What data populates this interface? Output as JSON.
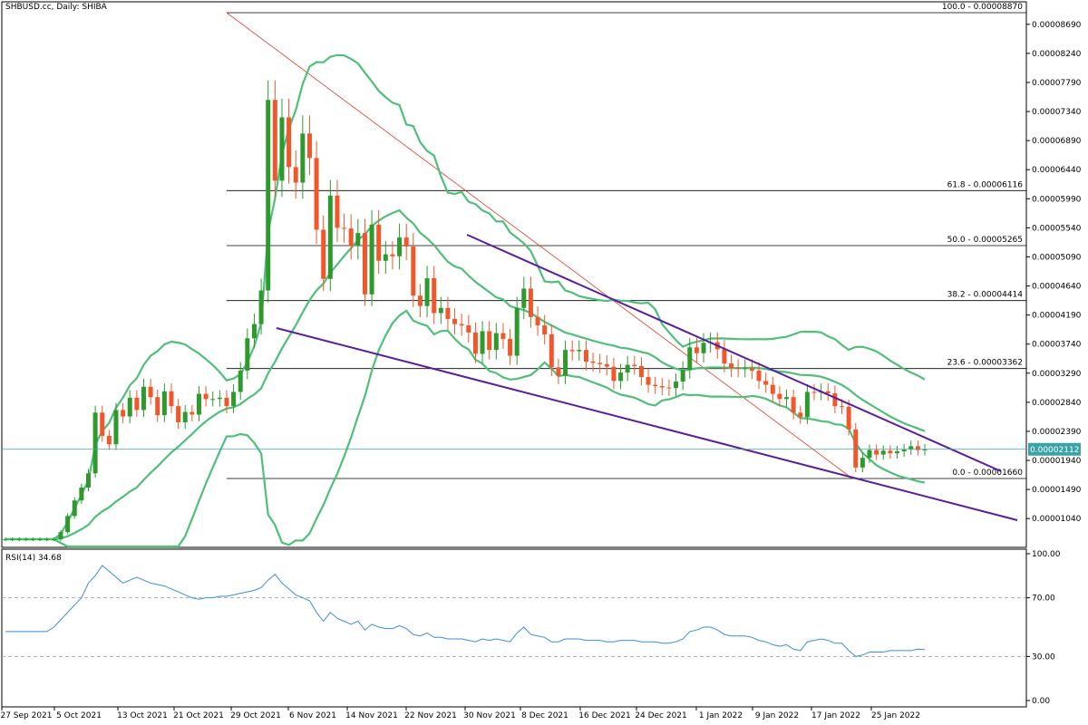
{
  "window": {
    "title": "SHBUSD.cc, Daily:  SHIBA",
    "rsi_label": "RSI(14) 34.68",
    "current_price": "0.00002112"
  },
  "colors": {
    "bull": "#2e9a2e",
    "bear": "#f0582b",
    "band": "#4fbf7a",
    "channel": "#5a1e9c",
    "fib_diag": "#e03a2a",
    "rsi_line": "#3a8ee0",
    "price_line": "#3aa3a8"
  },
  "chart_data": [
    {
      "type": "candlestick",
      "symbol": "SHBUSD.cc",
      "timeframe": "Daily",
      "y_axis_labels": [
        "0.00008690",
        "0.00008240",
        "0.00007790",
        "0.00007340",
        "0.00006890",
        "0.00006440",
        "0.00005990",
        "0.00005540",
        "0.00005090",
        "0.00004640",
        "0.00004190",
        "0.00003740",
        "0.00003290",
        "0.00002840",
        "0.00002390",
        "0.00001940",
        "0.00001490",
        "0.00001040"
      ],
      "x_axis_labels": [
        "27 Sep 2021",
        "5 Oct 2021",
        "13 Oct 2021",
        "21 Oct 2021",
        "29 Oct 2021",
        "6 Nov 2021",
        "14 Nov 2021",
        "22 Nov 2021",
        "30 Nov 2021",
        "8 Dec 2021",
        "16 Dec 2021",
        "24 Dec 2021",
        "1 Jan 2022",
        "9 Jan 2022",
        "17 Jan 2022",
        "25 Jan 2022"
      ],
      "fib_levels": [
        {
          "label": "100.0 - 0.00008870",
          "value": 8.87e-05
        },
        {
          "label": "61.8 - 0.00006116",
          "value": 6.116e-05
        },
        {
          "label": "50.0 - 0.00005265",
          "value": 5.265e-05
        },
        {
          "label": "38.2 - 0.00004414",
          "value": 4.414e-05
        },
        {
          "label": "23.6 - 0.00003362",
          "value": 3.362e-05
        },
        {
          "label": "0.0 - 0.00001660",
          "value": 1.66e-05
        }
      ],
      "current_price": 2.112e-05,
      "closes": [
        7.2e-06,
        7.2e-06,
        7.2e-06,
        7.2e-06,
        7.2e-06,
        7.2e-06,
        7.2e-06,
        7.2e-06,
        8.3e-06,
        1.08e-05,
        1.32e-05,
        1.52e-05,
        1.74e-05,
        2.68e-05,
        2.32e-05,
        2.19e-05,
        2.72e-05,
        2.62e-05,
        2.91e-05,
        2.72e-05,
        3.08e-05,
        2.92e-05,
        2.64e-05,
        3.01e-05,
        2.78e-05,
        2.53e-05,
        2.69e-05,
        2.65e-05,
        2.97e-05,
        2.89e-05,
        2.89e-05,
        2.91e-05,
        2.78e-05,
        3e-05,
        3.33e-05,
        3.83e-05,
        4.05e-05,
        4.57e-05,
        7.52e-05,
        6.27e-05,
        7.25e-05,
        6.48e-05,
        6.24e-05,
        7e-05,
        6.62e-05,
        5.51e-05,
        4.75e-05,
        6.04e-05,
        5.54e-05,
        5.53e-05,
        5.26e-05,
        5.46e-05,
        4.51e-05,
        5.59e-05,
        5.03e-05,
        5.13e-05,
        5.1e-05,
        5.39e-05,
        5.25e-05,
        4.49e-05,
        4.33e-05,
        4.76e-05,
        4.22e-05,
        4.3e-05,
        4.13e-05,
        4.05e-05,
        4.03e-05,
        3.92e-05,
        3.59e-05,
        3.94e-05,
        3.65e-05,
        3.91e-05,
        3.82e-05,
        3.56e-05,
        4.3e-05,
        4.6e-05,
        4.16e-05,
        4.03e-05,
        3.89e-05,
        3.38e-05,
        3.25e-05,
        3.65e-05,
        3.63e-05,
        3.65e-05,
        3.47e-05,
        3.45e-05,
        3.43e-05,
        3.39e-05,
        3.17e-05,
        3.3e-05,
        3.42e-05,
        3.4e-05,
        3.23e-05,
        3.11e-05,
        3.09e-05,
        3.07e-05,
        3.06e-05,
        3.16e-05,
        3.34e-05,
        3.69e-05,
        3.6e-05,
        3.76e-05,
        3.77e-05,
        3.66e-05,
        3.44e-05,
        3.37e-05,
        3.36e-05,
        3.37e-05,
        3.33e-05,
        3.17e-05,
        3.11e-05,
        2.97e-05,
        2.89e-05,
        2.92e-05,
        2.68e-05,
        2.61e-05,
        3e-05,
        2.99e-05,
        3.01e-05,
        2.98e-05,
        2.78e-05,
        2.77e-05,
        2.42e-05,
        1.83e-05,
        1.98e-05,
        2.1e-05,
        2.03e-05,
        2.09e-05,
        2.05e-05,
        2.08e-05,
        2.11e-05,
        2.16e-05,
        2.1e-05,
        2.11e-05
      ]
    },
    {
      "type": "line",
      "name": "RSI(14) 34.68",
      "y_axis_labels": [
        "100.00",
        "70.00",
        "30.00",
        "0.00"
      ],
      "ylim": [
        0,
        100
      ],
      "last_value": 34.68,
      "values": [
        47,
        47,
        47,
        47,
        47,
        47,
        47,
        50,
        55,
        60,
        65,
        70,
        80,
        85,
        92,
        88,
        84,
        80,
        82,
        84,
        82,
        80,
        79,
        78,
        76,
        74,
        72,
        70,
        69,
        70,
        70,
        71,
        71,
        72,
        73,
        74,
        75,
        77,
        82,
        86,
        80,
        76,
        72,
        70,
        68,
        60,
        54,
        60,
        56,
        54,
        52,
        54,
        48,
        52,
        50,
        49,
        49,
        51,
        49,
        45,
        44,
        46,
        43,
        43,
        42,
        42,
        42,
        41,
        40,
        42,
        41,
        42,
        41,
        40,
        46,
        50,
        45,
        44,
        43,
        40,
        40,
        42,
        42,
        42,
        41,
        41,
        41,
        40,
        40,
        41,
        41,
        41,
        40,
        40,
        40,
        39,
        39,
        40,
        42,
        47,
        48,
        50,
        50,
        48,
        45,
        44,
        44,
        44,
        43,
        41,
        40,
        38,
        37,
        38,
        35,
        34,
        40,
        41,
        42,
        41,
        39,
        39,
        34,
        30,
        31,
        33,
        33,
        33,
        34,
        34,
        34,
        34,
        35,
        34.68
      ]
    }
  ]
}
